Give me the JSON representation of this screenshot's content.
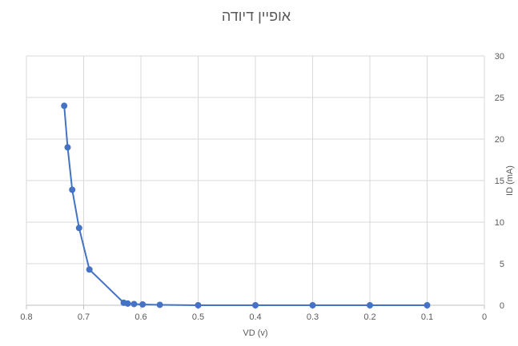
{
  "chart_data": {
    "type": "scatter",
    "title": "אופיין דיודה",
    "xlabel": "VD (v)",
    "ylabel": "ID (mA)",
    "xlim": [
      0,
      0.8
    ],
    "ylim": [
      0,
      30
    ],
    "x_reversed": true,
    "y_axis_side": "right",
    "grid": true,
    "xticks": [
      "0",
      "0.1",
      "0.2",
      "0.3",
      "0.4",
      "0.5",
      "0.6",
      "0.7",
      "0.8"
    ],
    "yticks": [
      "0",
      "5",
      "10",
      "15",
      "20",
      "25",
      "30"
    ],
    "series": [
      {
        "color": "#4472c4",
        "style": "lines-and-markers",
        "x": [
          0.1,
          0.2,
          0.3,
          0.4,
          0.5,
          0.567,
          0.597,
          0.612,
          0.623,
          0.63,
          0.69,
          0.708,
          0.72,
          0.728,
          0.734
        ],
        "y": [
          0,
          0,
          0,
          0,
          0,
          0.05,
          0.1,
          0.15,
          0.2,
          0.3,
          4.3,
          9.3,
          13.9,
          19.0,
          24.0
        ]
      }
    ]
  }
}
